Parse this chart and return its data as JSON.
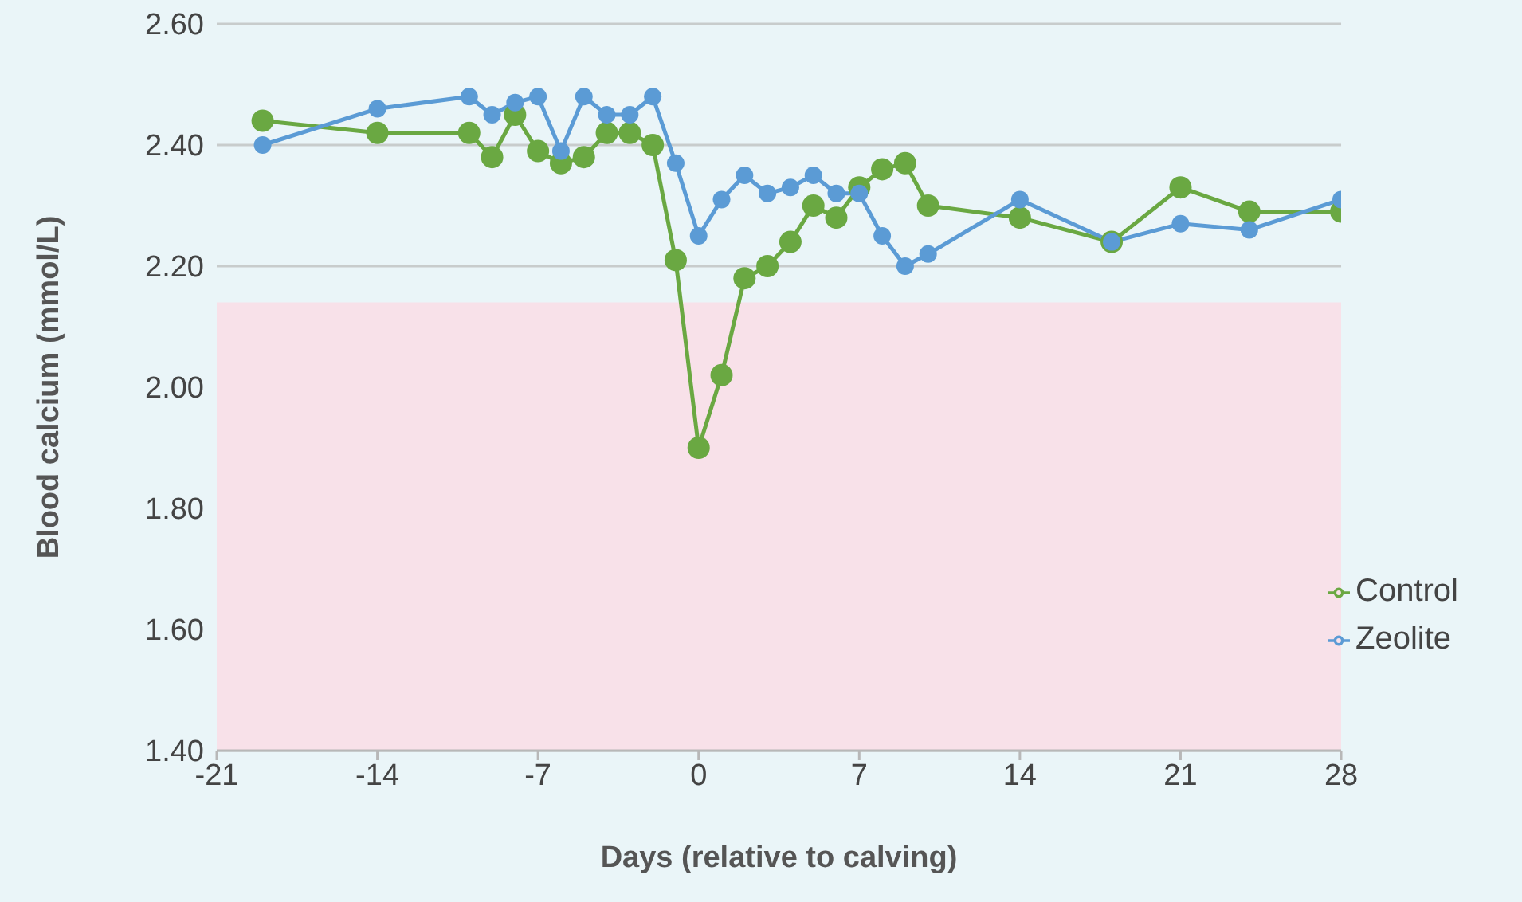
{
  "chart_data": {
    "type": "line",
    "xlabel": "Days (relative to calving)",
    "ylabel": "Blood calcium (mmol/L)",
    "xlim": [
      -21,
      28
    ],
    "xticks": [
      -21,
      -14,
      -7,
      0,
      7,
      14,
      21,
      28
    ],
    "ylim": [
      1.4,
      2.6
    ],
    "yticks": [
      {
        "value": 1.4,
        "label": "1.40"
      },
      {
        "value": 1.6,
        "label": "1.60"
      },
      {
        "value": 1.8,
        "label": "1.80"
      },
      {
        "value": 2.0,
        "label": "2.00"
      },
      {
        "value": 2.2,
        "label": "2.20"
      },
      {
        "value": 2.4,
        "label": "2.40"
      },
      {
        "value": 2.6,
        "label": "2.60"
      }
    ],
    "grid": "y",
    "legend": "bottom right",
    "marker": "circle",
    "line_style": "solid",
    "bands": [
      {
        "axis": "y",
        "from": 1.4,
        "to": 2.14,
        "color": "#f8e1e9"
      }
    ],
    "series": [
      {
        "name": "Control",
        "color": "#6aa842",
        "x": [
          -19,
          -14,
          -10,
          -9,
          -8,
          -7,
          -6,
          -5,
          -4,
          -3,
          -2,
          -1,
          0,
          1,
          2,
          3,
          4,
          5,
          6,
          7,
          8,
          9,
          10,
          14,
          18,
          21,
          24,
          28
        ],
        "values": [
          2.44,
          2.42,
          2.42,
          2.38,
          2.45,
          2.39,
          2.37,
          2.38,
          2.42,
          2.42,
          2.4,
          2.21,
          1.9,
          2.02,
          2.18,
          2.2,
          2.24,
          2.3,
          2.28,
          2.33,
          2.36,
          2.37,
          2.3,
          2.28,
          2.24,
          2.33,
          2.29,
          2.29
        ]
      },
      {
        "name": "Zeolite",
        "color": "#5b9bd5",
        "x": [
          -19,
          -14,
          -10,
          -9,
          -8,
          -7,
          -6,
          -5,
          -4,
          -3,
          -2,
          -1,
          0,
          1,
          2,
          3,
          4,
          5,
          6,
          7,
          8,
          9,
          10,
          14,
          18,
          21,
          24,
          28
        ],
        "values": [
          2.4,
          2.46,
          2.48,
          2.45,
          2.47,
          2.48,
          2.39,
          2.48,
          2.45,
          2.45,
          2.48,
          2.37,
          2.25,
          2.31,
          2.35,
          2.32,
          2.33,
          2.35,
          2.32,
          2.32,
          2.25,
          2.2,
          2.22,
          2.31,
          2.24,
          2.27,
          2.26,
          2.31
        ]
      }
    ]
  }
}
